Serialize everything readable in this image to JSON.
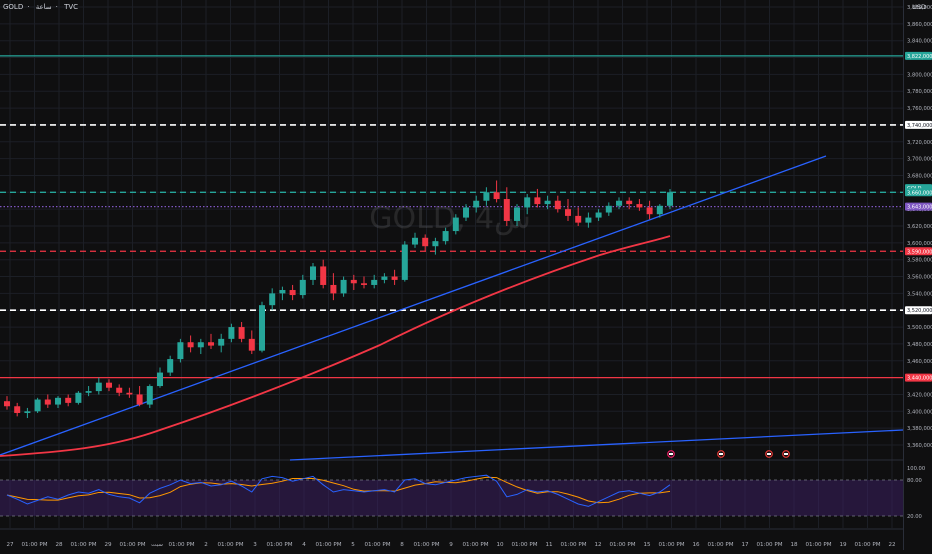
{
  "header": {
    "symbol": "GOLD",
    "interval": "ساعة",
    "source": "TVC",
    "currency": "USD",
    "watermark": "GOLD, 4س"
  },
  "price_axis_labels": [
    "3,880,000",
    "3,860,000",
    "3,840,000",
    "3,820,000",
    "3,800,000",
    "3,780,000",
    "3,760,000",
    "3,740,000",
    "3,720,000",
    "3,700,000",
    "3,680,000",
    "3,660,000",
    "3,640,000",
    "3,620,000",
    "3,600,000",
    "3,580,000",
    "3,560,000",
    "3,540,000",
    "3,520,000",
    "3,500,000",
    "3,480,000",
    "3,460,000",
    "3,440,000",
    "3,420,000",
    "3,400,000",
    "3,380,000",
    "3,360,000"
  ],
  "price_tags": [
    {
      "label": "3,822,000",
      "color": "#26a69a",
      "price": 3822
    },
    {
      "label": "3,740,000",
      "color": "#ffffff",
      "price": 3740
    },
    {
      "label": "GOLD",
      "color": "#26a69a",
      "price": 3665
    },
    {
      "label": "3,660,000",
      "color": "#26a69a",
      "price": 3660
    },
    {
      "label": "3,643,000",
      "color": "#7e57c2",
      "price": 3643
    },
    {
      "label": "3,590,000",
      "color": "#f23645",
      "price": 3590
    },
    {
      "label": "3,520,000",
      "color": "#ffffff",
      "price": 3520
    },
    {
      "label": "3,440,000",
      "color": "#f23645",
      "price": 3440
    }
  ],
  "horizontal_lines": [
    {
      "price": 3822,
      "color": "#26a69a",
      "style": "solid"
    },
    {
      "price": 3740,
      "color": "#ffffff",
      "style": "dashed"
    },
    {
      "price": 3660,
      "color": "#26a69a",
      "style": "dashed"
    },
    {
      "price": 3643,
      "color": "#7e57c2",
      "style": "dotted"
    },
    {
      "price": 3590,
      "color": "#f23645",
      "style": "dashed"
    },
    {
      "price": 3520,
      "color": "#ffffff",
      "style": "dashed"
    },
    {
      "price": 3440,
      "color": "#f23645",
      "style": "solid"
    }
  ],
  "rsi_axis_labels": [
    "100.00",
    "80.00",
    "20.00"
  ],
  "time_labels": [
    "27",
    "01:00 PM",
    "28",
    "01:00 PM",
    "29",
    "01:00 PM",
    "سبت",
    "01:00 PM",
    "2",
    "01:00 PM",
    "3",
    "01:00 PM",
    "4",
    "01:00 PM",
    "5",
    "01:00 PM",
    "8",
    "01:00 PM",
    "9",
    "01:00 PM",
    "10",
    "01:00 PM",
    "11",
    "01:00 PM",
    "12",
    "01:00 PM",
    "15",
    "01:00 PM",
    "16",
    "01:00 PM",
    "17",
    "01:00 PM",
    "18",
    "01:00 PM",
    "19",
    "01:00 PM",
    "22"
  ],
  "colors": {
    "up": "#26a69a",
    "down": "#f23645",
    "bg": "#0f0f10",
    "grid": "#1c1f26",
    "trendline": "#2962ff",
    "ma": "#f23645",
    "rsi_fill": "#3b1f5e",
    "rsi_line1": "#2962ff",
    "rsi_line2": "#ff9800"
  },
  "candles": [
    [
      3412,
      3418,
      3402,
      3406
    ],
    [
      3406,
      3410,
      3394,
      3398
    ],
    [
      3398,
      3404,
      3392,
      3400
    ],
    [
      3400,
      3416,
      3398,
      3414
    ],
    [
      3414,
      3420,
      3404,
      3408
    ],
    [
      3408,
      3418,
      3404,
      3416
    ],
    [
      3416,
      3420,
      3406,
      3410
    ],
    [
      3410,
      3424,
      3408,
      3422
    ],
    [
      3422,
      3430,
      3418,
      3424
    ],
    [
      3424,
      3440,
      3420,
      3434
    ],
    [
      3434,
      3438,
      3424,
      3428
    ],
    [
      3428,
      3432,
      3418,
      3422
    ],
    [
      3422,
      3428,
      3416,
      3420
    ],
    [
      3420,
      3430,
      3406,
      3408
    ],
    [
      3408,
      3432,
      3404,
      3430
    ],
    [
      3430,
      3452,
      3428,
      3446
    ],
    [
      3446,
      3466,
      3442,
      3462
    ],
    [
      3462,
      3486,
      3458,
      3482
    ],
    [
      3482,
      3490,
      3470,
      3476
    ],
    [
      3476,
      3486,
      3468,
      3482
    ],
    [
      3482,
      3492,
      3474,
      3478
    ],
    [
      3478,
      3492,
      3470,
      3486
    ],
    [
      3486,
      3504,
      3482,
      3500
    ],
    [
      3500,
      3506,
      3482,
      3486
    ],
    [
      3486,
      3496,
      3468,
      3472
    ],
    [
      3472,
      3530,
      3470,
      3526
    ],
    [
      3526,
      3546,
      3520,
      3540
    ],
    [
      3540,
      3548,
      3532,
      3544
    ],
    [
      3544,
      3550,
      3532,
      3538
    ],
    [
      3538,
      3562,
      3534,
      3556
    ],
    [
      3556,
      3576,
      3550,
      3572
    ],
    [
      3572,
      3580,
      3546,
      3550
    ],
    [
      3550,
      3564,
      3532,
      3540
    ],
    [
      3540,
      3560,
      3536,
      3556
    ],
    [
      3556,
      3562,
      3544,
      3552
    ],
    [
      3552,
      3560,
      3546,
      3550
    ],
    [
      3550,
      3562,
      3546,
      3556
    ],
    [
      3556,
      3564,
      3552,
      3560
    ],
    [
      3560,
      3568,
      3550,
      3556
    ],
    [
      3556,
      3602,
      3554,
      3598
    ],
    [
      3598,
      3612,
      3594,
      3606
    ],
    [
      3606,
      3610,
      3590,
      3596
    ],
    [
      3596,
      3606,
      3586,
      3602
    ],
    [
      3602,
      3618,
      3598,
      3614
    ],
    [
      3614,
      3634,
      3610,
      3630
    ],
    [
      3630,
      3646,
      3626,
      3642
    ],
    [
      3642,
      3656,
      3636,
      3650
    ],
    [
      3650,
      3666,
      3644,
      3660
    ],
    [
      3660,
      3674,
      3648,
      3652
    ],
    [
      3652,
      3666,
      3620,
      3626
    ],
    [
      3626,
      3646,
      3620,
      3642
    ],
    [
      3642,
      3658,
      3634,
      3654
    ],
    [
      3654,
      3664,
      3642,
      3646
    ],
    [
      3646,
      3656,
      3640,
      3650
    ],
    [
      3650,
      3656,
      3636,
      3640
    ],
    [
      3640,
      3652,
      3626,
      3632
    ],
    [
      3632,
      3642,
      3620,
      3624
    ],
    [
      3624,
      3636,
      3618,
      3630
    ],
    [
      3630,
      3640,
      3626,
      3636
    ],
    [
      3636,
      3648,
      3632,
      3644
    ],
    [
      3644,
      3654,
      3640,
      3650
    ],
    [
      3650,
      3654,
      3640,
      3646
    ],
    [
      3646,
      3652,
      3638,
      3642
    ],
    [
      3642,
      3650,
      3628,
      3634
    ],
    [
      3634,
      3646,
      3630,
      3644
    ],
    [
      3644,
      3664,
      3640,
      3660
    ]
  ],
  "rsi_values": [
    55,
    48,
    40,
    46,
    52,
    48,
    55,
    60,
    58,
    64,
    56,
    52,
    50,
    42,
    58,
    66,
    72,
    80,
    74,
    76,
    70,
    72,
    78,
    70,
    60,
    82,
    86,
    84,
    78,
    82,
    86,
    72,
    60,
    64,
    62,
    60,
    62,
    64,
    60,
    80,
    82,
    74,
    72,
    76,
    80,
    84,
    86,
    88,
    78,
    52,
    56,
    64,
    60,
    62,
    56,
    48,
    40,
    36,
    44,
    52,
    60,
    62,
    58,
    54,
    60,
    72
  ]
}
